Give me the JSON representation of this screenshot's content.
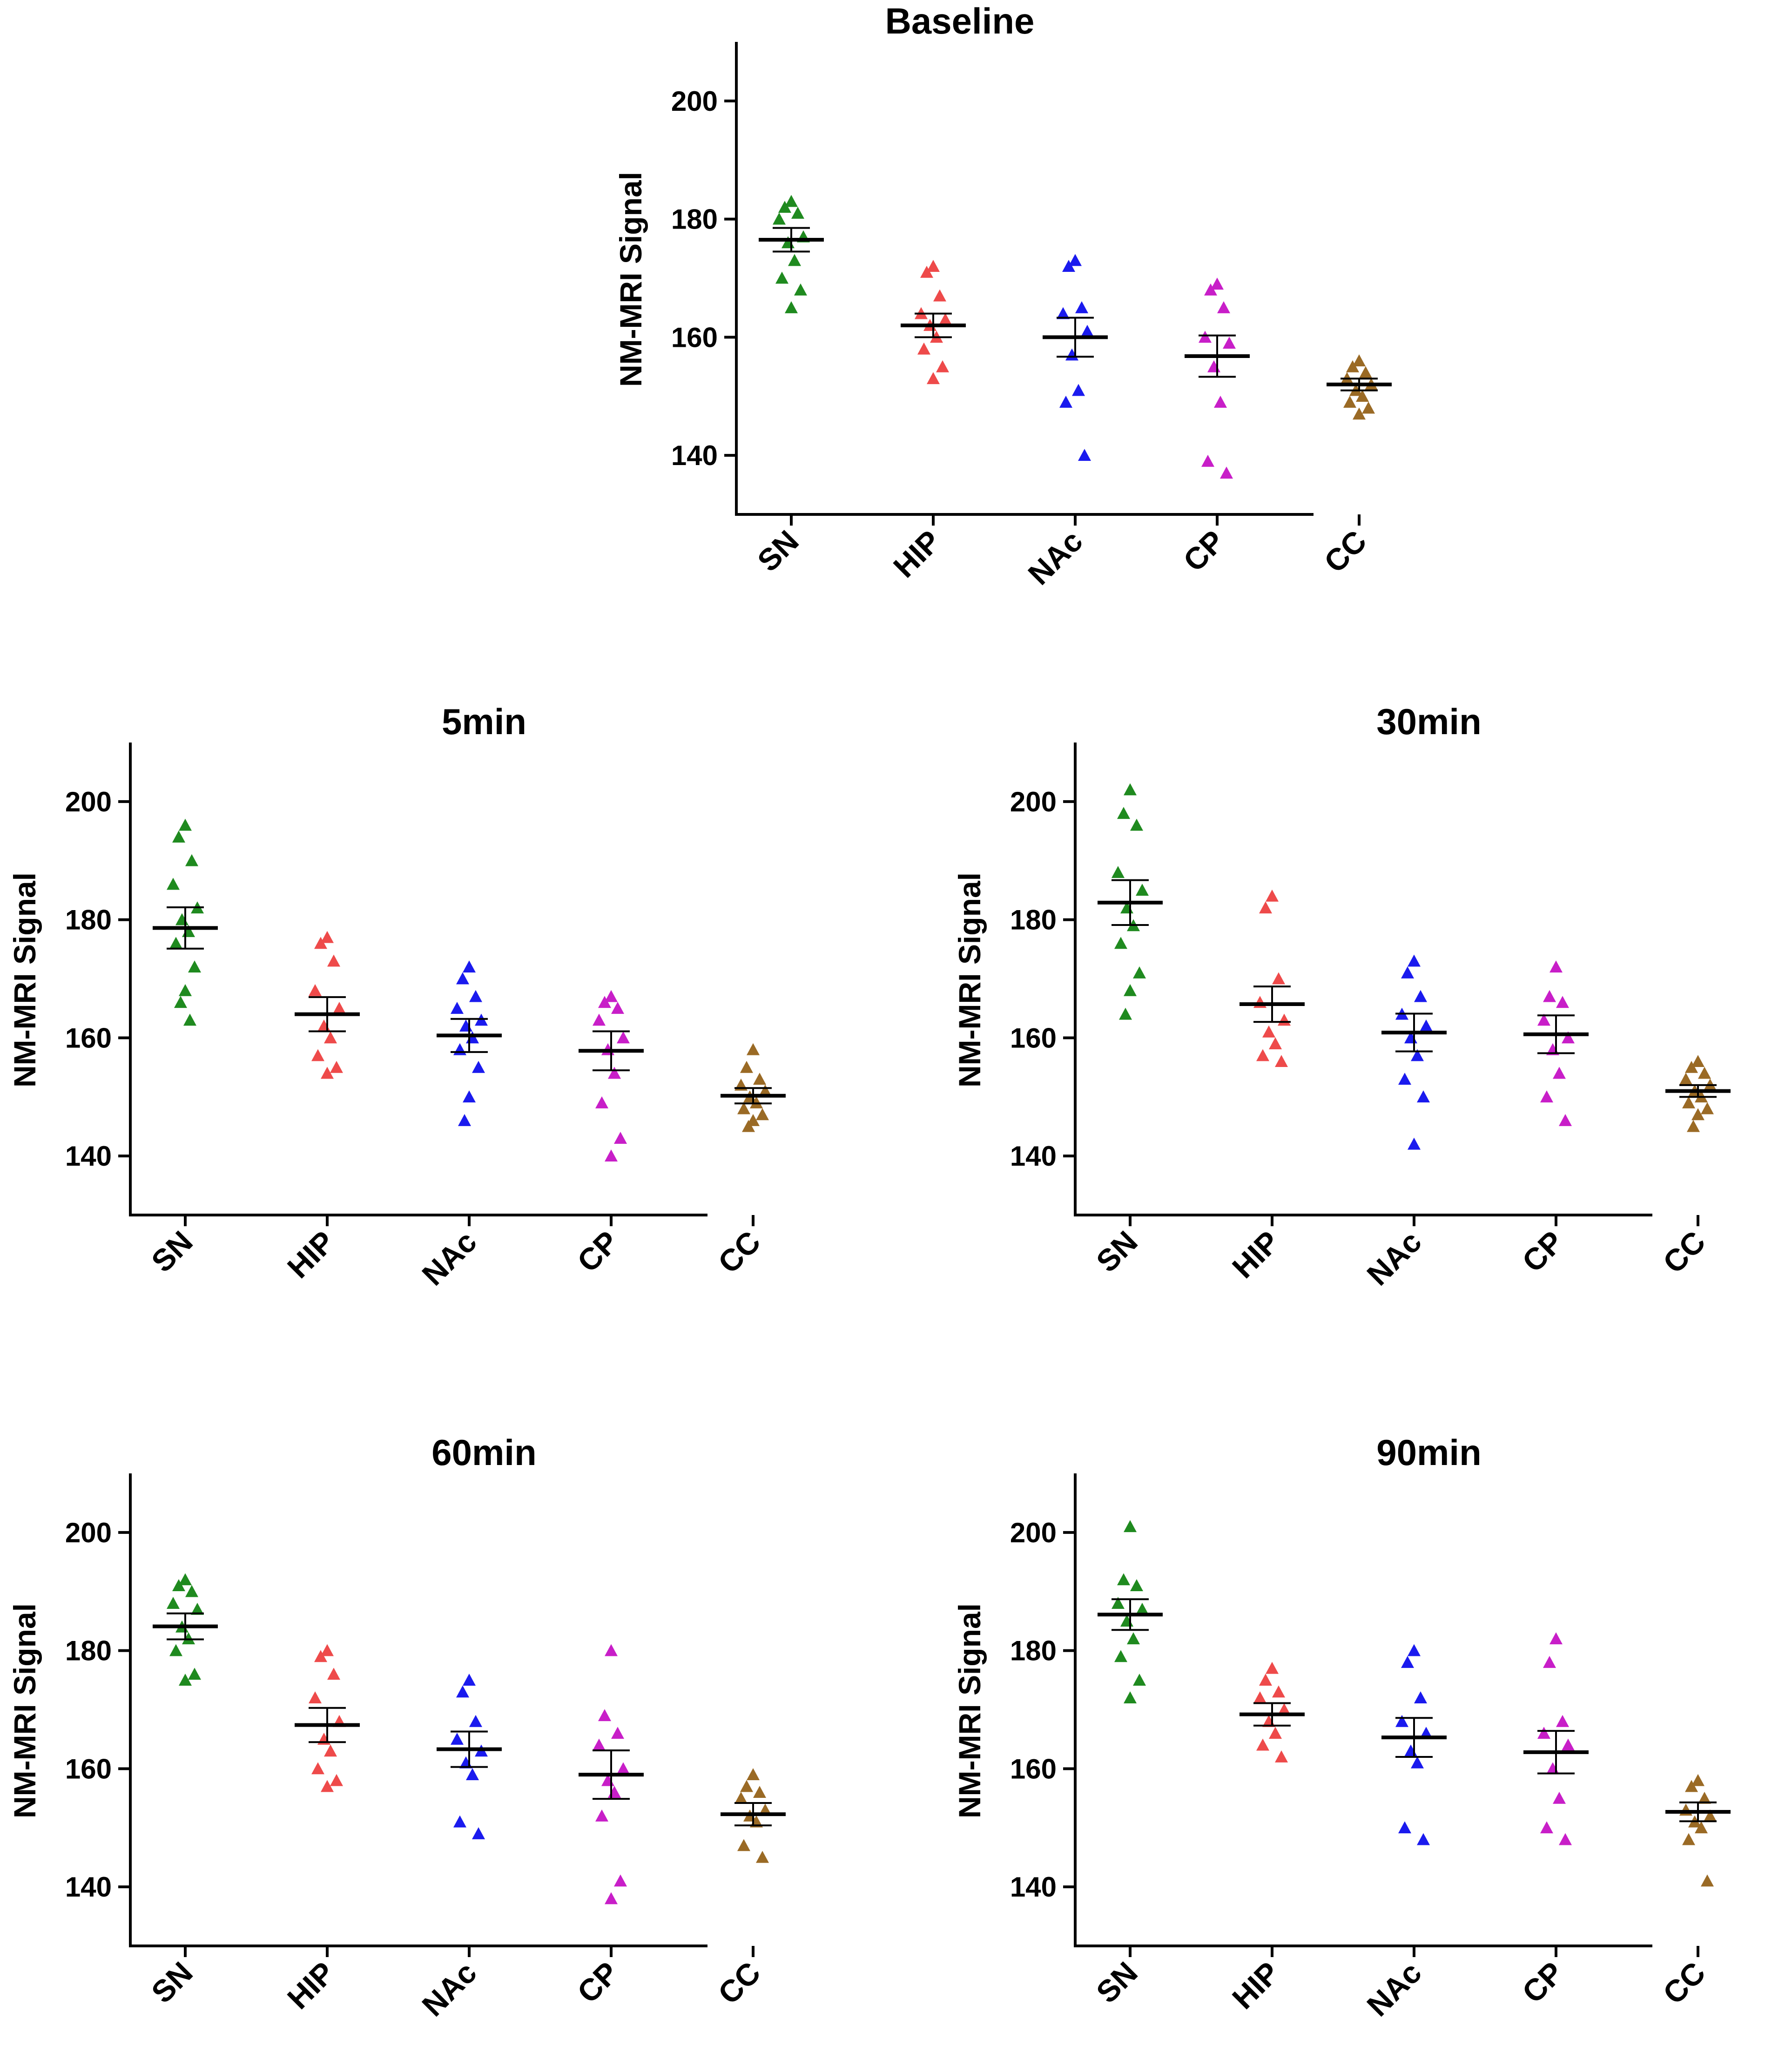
{
  "figure": {
    "colors": {
      "SN": "#1f8a1f",
      "HIP": "#ee4a4a",
      "NAc": "#1a1aee",
      "CP": "#c81ec8",
      "CC": "#9a6a25",
      "axis": "#000000"
    },
    "marker_shape": "triangle-up"
  },
  "chart_data": [
    {
      "type": "scatter",
      "title": "Baseline",
      "ylabel": "NM-MRI Signal",
      "xlabel": "",
      "categories": [
        "SN",
        "HIP",
        "NAc",
        "CP",
        "CC"
      ],
      "ylim": [
        130,
        210
      ],
      "yticks": [
        140,
        160,
        180,
        200
      ],
      "points": [
        [
          183,
          182,
          181,
          180,
          177,
          176,
          173,
          170,
          168,
          165
        ],
        [
          172,
          171,
          167,
          164,
          163,
          162,
          160,
          158,
          155,
          153
        ],
        [
          173,
          172,
          165,
          164,
          161,
          157,
          151,
          149,
          140
        ],
        [
          169,
          168,
          165,
          160,
          159,
          155,
          149,
          139,
          137
        ],
        [
          156,
          155,
          154,
          153,
          152,
          151,
          150,
          149,
          148,
          147
        ]
      ],
      "mean": [
        176.5,
        162,
        160,
        156.8,
        152
      ],
      "sem": [
        2.0,
        2.0,
        3.3,
        3.5,
        1.0
      ]
    },
    {
      "type": "scatter",
      "title": "5min",
      "ylabel": "NM-MRI Signal",
      "xlabel": "",
      "categories": [
        "SN",
        "HIP",
        "NAc",
        "CP",
        "CC"
      ],
      "ylim": [
        130,
        210
      ],
      "yticks": [
        140,
        160,
        180,
        200
      ],
      "points": [
        [
          196,
          194,
          190,
          186,
          182,
          180,
          178,
          176,
          172,
          168,
          166,
          163
        ],
        [
          177,
          176,
          173,
          168,
          165,
          162,
          160,
          157,
          155,
          154
        ],
        [
          172,
          170,
          167,
          165,
          163,
          162,
          160,
          158,
          155,
          150,
          146
        ],
        [
          167,
          166,
          165,
          163,
          160,
          158,
          154,
          149,
          143,
          140
        ],
        [
          158,
          155,
          153,
          152,
          151,
          150,
          149,
          148,
          147,
          146,
          145
        ]
      ],
      "mean": [
        178.6,
        164,
        160.4,
        157.8,
        150.2
      ],
      "sem": [
        3.5,
        2.9,
        2.8,
        3.3,
        1.3
      ]
    },
    {
      "type": "scatter",
      "title": "30min",
      "ylabel": "NM-MRI Signal",
      "xlabel": "",
      "categories": [
        "SN",
        "HIP",
        "NAc",
        "CP",
        "CC"
      ],
      "ylim": [
        130,
        210
      ],
      "yticks": [
        140,
        160,
        180,
        200
      ],
      "points": [
        [
          202,
          198,
          196,
          188,
          185,
          182,
          179,
          176,
          171,
          168,
          164
        ],
        [
          184,
          182,
          170,
          166,
          163,
          161,
          159,
          157,
          156
        ],
        [
          173,
          171,
          167,
          164,
          162,
          160,
          157,
          153,
          150,
          142
        ],
        [
          172,
          167,
          166,
          163,
          160,
          158,
          154,
          150,
          146
        ],
        [
          156,
          155,
          154,
          153,
          152,
          151,
          150,
          149,
          148,
          147,
          145
        ]
      ],
      "mean": [
        182.9,
        165.7,
        160.9,
        160.6,
        151
      ],
      "sem": [
        3.8,
        3.0,
        3.2,
        3.2,
        1.0
      ]
    },
    {
      "type": "scatter",
      "title": "60min",
      "ylabel": "NM-MRI Signal",
      "xlabel": "",
      "categories": [
        "SN",
        "HIP",
        "NAc",
        "CP",
        "CC"
      ],
      "ylim": [
        130,
        210
      ],
      "yticks": [
        140,
        160,
        180,
        200
      ],
      "points": [
        [
          192,
          191,
          190,
          188,
          187,
          184,
          182,
          180,
          176,
          175
        ],
        [
          180,
          179,
          176,
          172,
          168,
          165,
          163,
          160,
          158,
          157
        ],
        [
          175,
          173,
          168,
          165,
          163,
          161,
          159,
          151,
          149
        ],
        [
          180,
          169,
          166,
          164,
          160,
          158,
          156,
          152,
          141,
          138
        ],
        [
          159,
          157,
          156,
          155,
          153,
          152,
          151,
          147,
          145
        ]
      ],
      "mean": [
        184.1,
        167.4,
        163.3,
        159,
        152.3
      ],
      "sem": [
        2.2,
        2.9,
        3.0,
        4.1,
        1.9
      ]
    },
    {
      "type": "scatter",
      "title": "90min",
      "ylabel": "NM-MRI Signal",
      "xlabel": "",
      "categories": [
        "SN",
        "HIP",
        "NAc",
        "CP",
        "CC"
      ],
      "ylim": [
        130,
        210
      ],
      "yticks": [
        140,
        160,
        180,
        200
      ],
      "points": [
        [
          201,
          192,
          191,
          188,
          187,
          185,
          182,
          179,
          175,
          172
        ],
        [
          177,
          175,
          173,
          172,
          170,
          168,
          166,
          164,
          162
        ],
        [
          180,
          178,
          172,
          168,
          166,
          163,
          161,
          150,
          148
        ],
        [
          182,
          178,
          168,
          166,
          164,
          160,
          155,
          150,
          148
        ],
        [
          158,
          157,
          155,
          153,
          152,
          151,
          150,
          148,
          141
        ]
      ],
      "mean": [
        186.1,
        169.2,
        165.3,
        162.8,
        152.7
      ],
      "sem": [
        2.6,
        1.9,
        3.3,
        3.6,
        1.6
      ]
    }
  ]
}
